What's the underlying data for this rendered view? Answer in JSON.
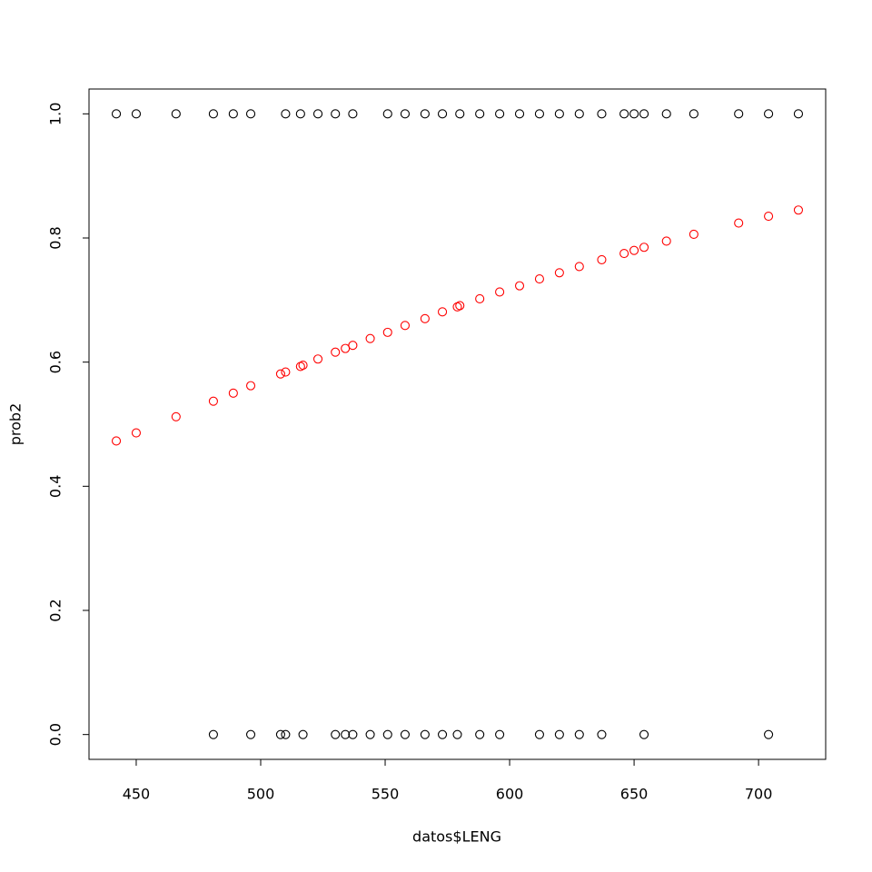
{
  "chart_data": {
    "type": "scatter",
    "xlabel": "datos$LENG",
    "ylabel": "prob2",
    "xlim": [
      431.04,
      726.96
    ],
    "ylim": [
      -0.04,
      1.04
    ],
    "xticks": [
      450,
      500,
      550,
      600,
      650,
      700
    ],
    "yticks": [
      {
        "value": 0,
        "label": "0.0"
      },
      0.2,
      0.4,
      0.6,
      0.8,
      {
        "value": 1,
        "label": "1.0"
      }
    ],
    "series": [
      {
        "color": "#000000",
        "x": [
          442,
          450,
          466,
          481,
          489,
          496,
          510,
          516,
          523,
          530,
          537,
          551,
          558,
          566,
          573,
          580,
          588,
          596,
          604,
          612,
          620,
          628,
          637,
          646,
          650,
          654,
          663,
          674,
          692,
          704,
          716,
          481,
          496,
          508,
          510,
          517,
          530,
          534,
          537,
          544,
          551,
          558,
          566,
          573,
          579,
          588,
          596,
          612,
          620,
          628,
          637,
          654,
          704
        ],
        "values": [
          1,
          1,
          1,
          1,
          1,
          1,
          1,
          1,
          1,
          1,
          1,
          1,
          1,
          1,
          1,
          1,
          1,
          1,
          1,
          1,
          1,
          1,
          1,
          1,
          1,
          1,
          1,
          1,
          1,
          1,
          1,
          0,
          0,
          0,
          0,
          0,
          0,
          0,
          0,
          0,
          0,
          0,
          0,
          0,
          0,
          0,
          0,
          0,
          0,
          0,
          0,
          0,
          0
        ]
      },
      {
        "color": "#ff0000",
        "x": [
          442,
          450,
          466,
          481,
          489,
          496,
          508,
          510,
          516,
          517,
          523,
          530,
          534,
          537,
          544,
          551,
          558,
          566,
          573,
          579,
          580,
          588,
          596,
          604,
          612,
          620,
          628,
          637,
          646,
          650,
          654,
          663,
          674,
          692,
          704,
          716
        ],
        "values": [
          0.473,
          0.486,
          0.512,
          0.537,
          0.55,
          0.562,
          0.581,
          0.584,
          0.593,
          0.595,
          0.605,
          0.616,
          0.622,
          0.627,
          0.638,
          0.648,
          0.659,
          0.67,
          0.681,
          0.689,
          0.691,
          0.702,
          0.713,
          0.723,
          0.734,
          0.744,
          0.754,
          0.765,
          0.775,
          0.78,
          0.785,
          0.795,
          0.806,
          0.824,
          0.835,
          0.845
        ]
      }
    ]
  }
}
